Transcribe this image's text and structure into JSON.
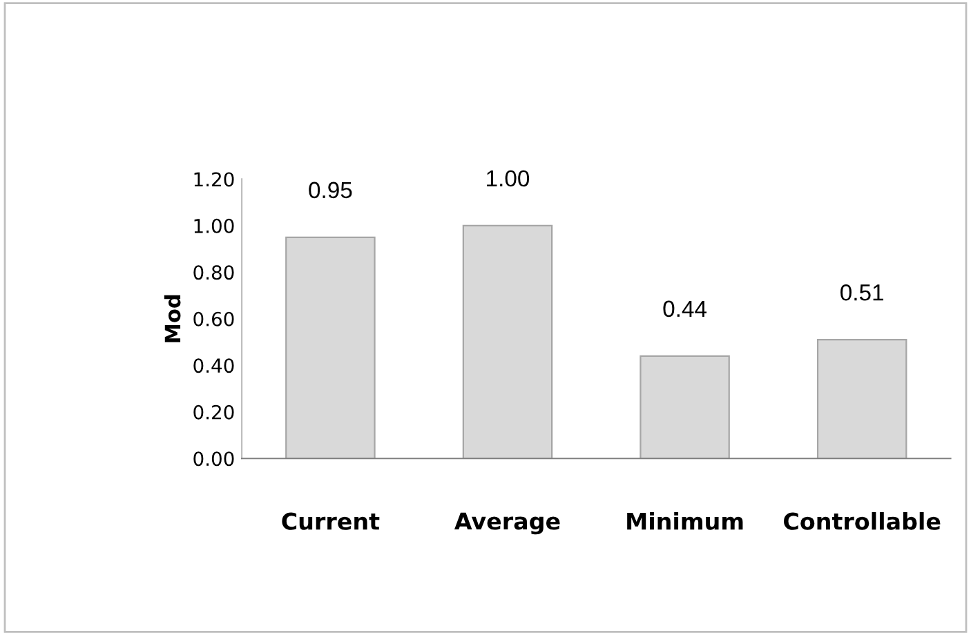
{
  "chart_data": {
    "type": "bar",
    "ylabel": "Mod",
    "categories": [
      "Current",
      "Average",
      "Minimum",
      "Controllable"
    ],
    "values": [
      0.95,
      1.0,
      0.44,
      0.51
    ],
    "value_labels": [
      "0.95",
      "1.00",
      "0.44",
      "0.51"
    ],
    "color": "#d9d9d9",
    "ylim": [
      0,
      1.2
    ],
    "yticks": [
      {
        "value": 0,
        "label": "0.00"
      },
      {
        "value": 0.2,
        "label": "0.20"
      },
      {
        "value": 0.4,
        "label": "0.40"
      },
      {
        "value": 0.6,
        "label": "0.60"
      },
      {
        "value": 0.8,
        "label": "0.80"
      },
      {
        "value": 1.0,
        "label": "1.00"
      },
      {
        "value": 1.2,
        "label": "1.20"
      }
    ],
    "grid": false,
    "legend": false
  }
}
